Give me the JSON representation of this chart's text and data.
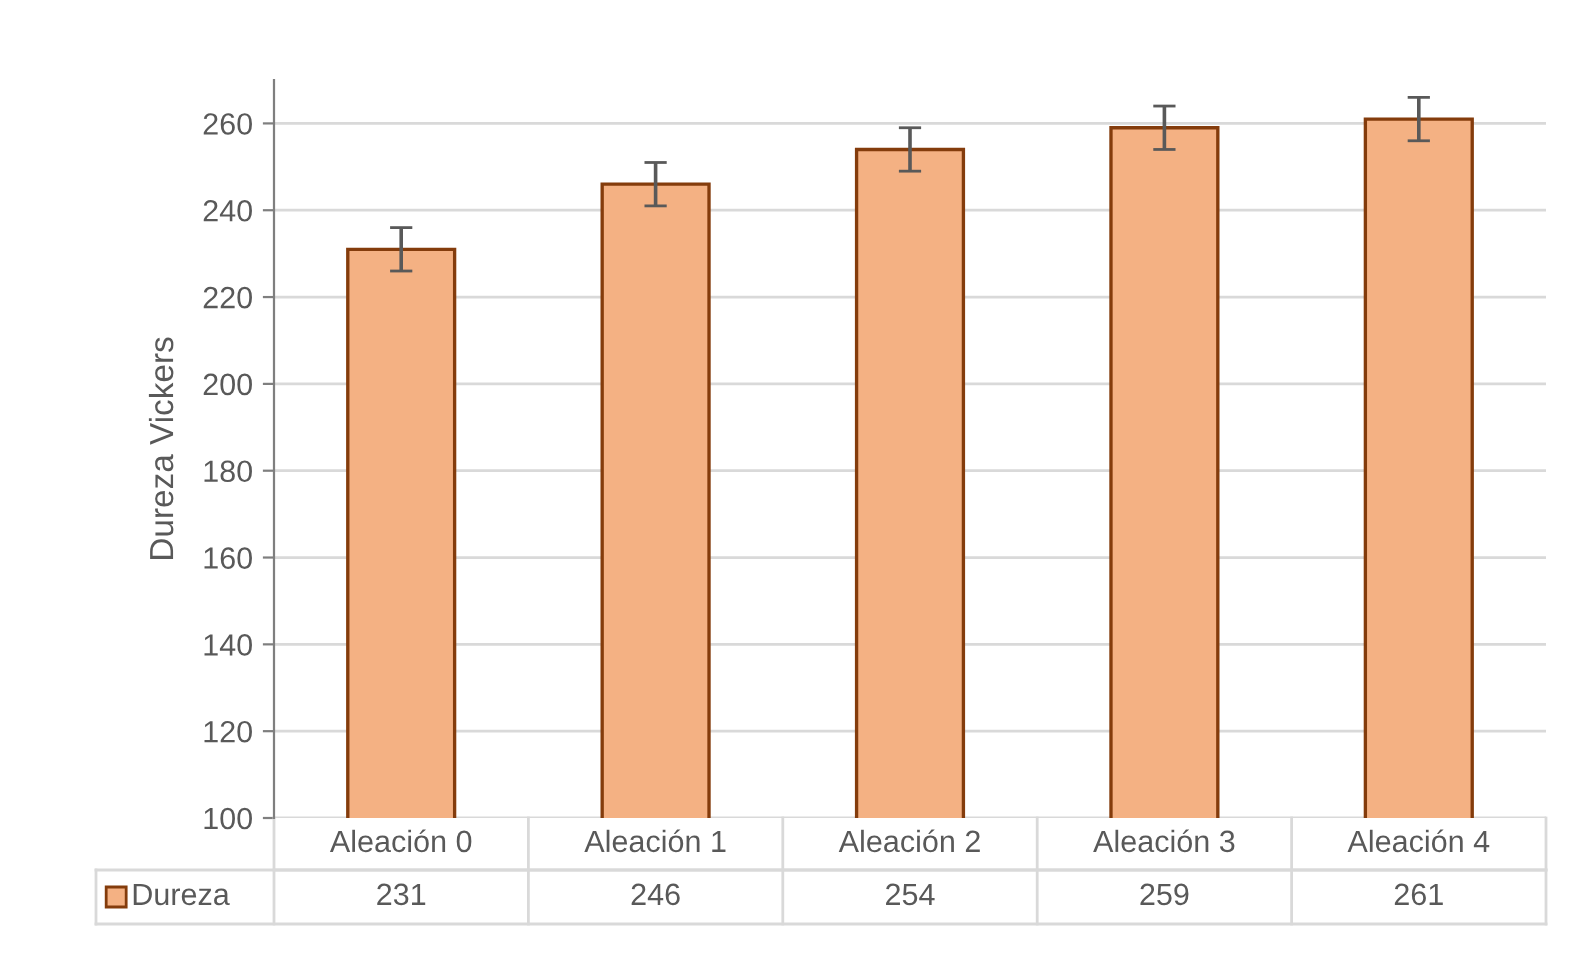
{
  "chart_data": {
    "type": "bar",
    "ylabel": "Dureza Vickers",
    "categories": [
      "Aleación 0",
      "Aleación 1",
      "Aleación 2",
      "Aleación 3",
      "Aleación 4"
    ],
    "series": [
      {
        "name": "Dureza",
        "color": "#f4b183",
        "values": [
          231,
          246,
          254,
          259,
          261
        ],
        "errors": [
          5,
          5,
          5,
          5,
          5
        ]
      }
    ],
    "ylim": [
      100,
      270
    ],
    "yticks": [
      100,
      120,
      140,
      160,
      180,
      200,
      220,
      240,
      260
    ],
    "grid": "y",
    "data_labels": true,
    "legend": "bottom"
  }
}
